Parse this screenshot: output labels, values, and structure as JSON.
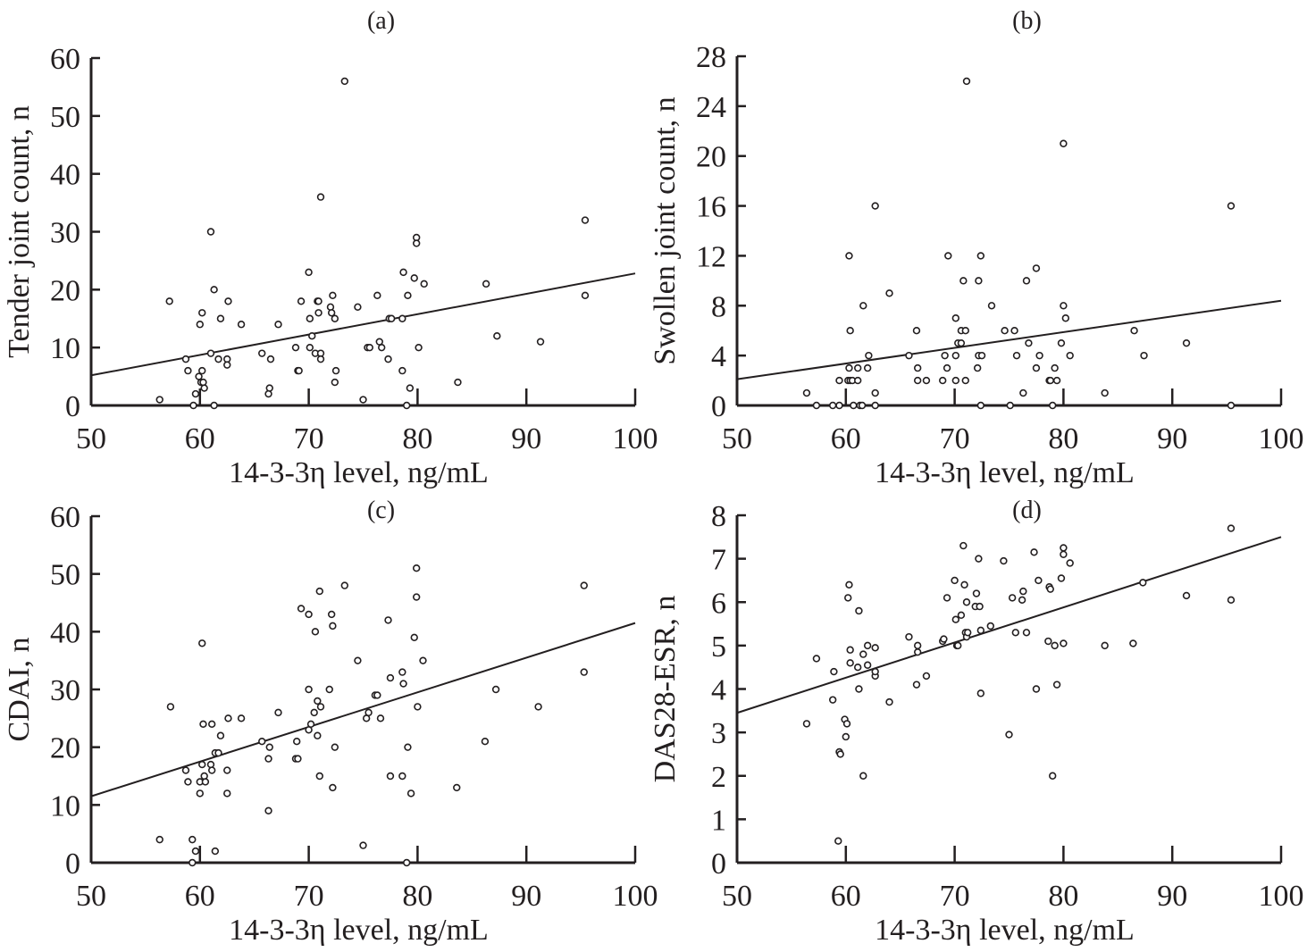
{
  "figure": {
    "colors": {
      "ink": "#231f20",
      "background": "#ffffff"
    }
  },
  "chart_data": [
    {
      "type": "scatter",
      "panel": "(a)",
      "title": "(a)",
      "xlabel": "14-3-3η level, ng/mL",
      "ylabel": "Tender joint count, n",
      "xlim": [
        50,
        100
      ],
      "ylim": [
        0,
        60
      ],
      "xticks": [
        50,
        60,
        70,
        80,
        90,
        100
      ],
      "yticks": [
        0,
        10,
        20,
        30,
        40,
        50,
        60
      ],
      "grid": false,
      "regression": {
        "x": [
          50,
          100
        ],
        "y": [
          5.2,
          22.8
        ]
      },
      "points": [
        [
          56.3,
          1
        ],
        [
          57.2,
          18
        ],
        [
          58.7,
          8
        ],
        [
          58.9,
          6
        ],
        [
          59.4,
          0
        ],
        [
          59.6,
          2
        ],
        [
          59.9,
          5
        ],
        [
          60.0,
          14
        ],
        [
          60.1,
          4
        ],
        [
          60.2,
          16
        ],
        [
          60.2,
          6
        ],
        [
          60.3,
          4
        ],
        [
          60.4,
          3
        ],
        [
          61.0,
          30
        ],
        [
          61.0,
          9
        ],
        [
          61.3,
          20
        ],
        [
          61.3,
          0
        ],
        [
          61.7,
          8
        ],
        [
          61.9,
          15
        ],
        [
          62.5,
          8
        ],
        [
          62.5,
          7
        ],
        [
          62.6,
          18
        ],
        [
          63.8,
          14
        ],
        [
          65.7,
          9
        ],
        [
          66.3,
          2
        ],
        [
          66.4,
          3
        ],
        [
          66.5,
          8
        ],
        [
          67.2,
          14
        ],
        [
          68.8,
          10
        ],
        [
          69.0,
          6
        ],
        [
          69.1,
          6
        ],
        [
          69.3,
          18
        ],
        [
          70.0,
          23
        ],
        [
          70.1,
          15
        ],
        [
          70.1,
          10
        ],
        [
          70.3,
          12
        ],
        [
          70.6,
          9
        ],
        [
          70.8,
          18
        ],
        [
          70.9,
          18
        ],
        [
          70.9,
          16
        ],
        [
          71.1,
          9
        ],
        [
          71.1,
          8
        ],
        [
          71.1,
          36
        ],
        [
          72.0,
          17
        ],
        [
          72.1,
          16
        ],
        [
          72.2,
          19
        ],
        [
          72.4,
          15
        ],
        [
          72.4,
          4
        ],
        [
          72.5,
          6
        ],
        [
          73.3,
          56
        ],
        [
          74.5,
          17
        ],
        [
          75.0,
          1
        ],
        [
          75.4,
          10
        ],
        [
          75.6,
          10
        ],
        [
          76.3,
          19
        ],
        [
          76.5,
          11
        ],
        [
          76.7,
          10
        ],
        [
          77.3,
          8
        ],
        [
          77.4,
          15
        ],
        [
          77.6,
          15
        ],
        [
          78.7,
          23
        ],
        [
          78.6,
          15
        ],
        [
          78.6,
          6
        ],
        [
          79.0,
          0
        ],
        [
          79.1,
          19
        ],
        [
          79.3,
          3
        ],
        [
          79.7,
          22
        ],
        [
          79.9,
          29
        ],
        [
          79.9,
          28
        ],
        [
          80.1,
          10
        ],
        [
          80.6,
          21
        ],
        [
          83.7,
          4
        ],
        [
          86.3,
          21
        ],
        [
          87.3,
          12
        ],
        [
          91.3,
          11
        ],
        [
          95.4,
          32
        ],
        [
          95.4,
          19
        ]
      ]
    },
    {
      "type": "scatter",
      "panel": "(b)",
      "title": "(b)",
      "xlabel": "14-3-3η level, ng/mL",
      "ylabel": "Swollen joint count, n",
      "xlim": [
        50,
        100
      ],
      "ylim": [
        0,
        28
      ],
      "xticks": [
        50,
        60,
        70,
        80,
        90,
        100
      ],
      "yticks": [
        0,
        4,
        8,
        12,
        16,
        20,
        24,
        28
      ],
      "grid": false,
      "regression": {
        "x": [
          50,
          100
        ],
        "y": [
          2.1,
          8.4
        ]
      },
      "points": [
        [
          56.4,
          1
        ],
        [
          57.3,
          0
        ],
        [
          58.8,
          0
        ],
        [
          59.4,
          2
        ],
        [
          59.4,
          0
        ],
        [
          60.2,
          2
        ],
        [
          60.3,
          3
        ],
        [
          60.3,
          12
        ],
        [
          60.4,
          6
        ],
        [
          60.4,
          2
        ],
        [
          60.6,
          2
        ],
        [
          60.7,
          0
        ],
        [
          61.1,
          2
        ],
        [
          61.1,
          3
        ],
        [
          61.3,
          0
        ],
        [
          61.5,
          0
        ],
        [
          61.6,
          8
        ],
        [
          62.0,
          3
        ],
        [
          62.1,
          4
        ],
        [
          62.7,
          16
        ],
        [
          62.7,
          1
        ],
        [
          62.7,
          0
        ],
        [
          64.0,
          9
        ],
        [
          65.8,
          4
        ],
        [
          66.5,
          6
        ],
        [
          66.6,
          3
        ],
        [
          66.6,
          2
        ],
        [
          67.4,
          2
        ],
        [
          68.9,
          2
        ],
        [
          69.1,
          4
        ],
        [
          69.3,
          3
        ],
        [
          69.4,
          12
        ],
        [
          70.1,
          7
        ],
        [
          70.1,
          4
        ],
        [
          70.1,
          2
        ],
        [
          70.3,
          5
        ],
        [
          70.6,
          5
        ],
        [
          70.6,
          6
        ],
        [
          70.8,
          10
        ],
        [
          71.0,
          6
        ],
        [
          71.1,
          26
        ],
        [
          71.0,
          2
        ],
        [
          72.1,
          3
        ],
        [
          72.2,
          10
        ],
        [
          72.2,
          4
        ],
        [
          72.4,
          12
        ],
        [
          72.5,
          4
        ],
        [
          72.4,
          0
        ],
        [
          73.4,
          8
        ],
        [
          74.6,
          6
        ],
        [
          75.1,
          0
        ],
        [
          75.5,
          6
        ],
        [
          75.7,
          4
        ],
        [
          76.3,
          1
        ],
        [
          76.6,
          10
        ],
        [
          76.8,
          5
        ],
        [
          77.5,
          11
        ],
        [
          77.5,
          3
        ],
        [
          77.8,
          4
        ],
        [
          78.7,
          2
        ],
        [
          78.8,
          2
        ],
        [
          79.0,
          0
        ],
        [
          79.2,
          3
        ],
        [
          79.4,
          2
        ],
        [
          79.8,
          5
        ],
        [
          80.0,
          8
        ],
        [
          80.0,
          21
        ],
        [
          80.2,
          7
        ],
        [
          80.6,
          4
        ],
        [
          83.8,
          1
        ],
        [
          86.5,
          6
        ],
        [
          87.4,
          4
        ],
        [
          91.3,
          5
        ],
        [
          95.4,
          16
        ],
        [
          95.4,
          0
        ]
      ]
    },
    {
      "type": "scatter",
      "panel": "(c)",
      "title": "(c)",
      "xlabel": "14-3-3η level, ng/mL",
      "ylabel": "CDAI, n",
      "xlim": [
        50,
        100
      ],
      "ylim": [
        0,
        60
      ],
      "xticks": [
        50,
        60,
        70,
        80,
        90,
        100
      ],
      "yticks": [
        0,
        10,
        20,
        30,
        40,
        50,
        60
      ],
      "grid": false,
      "regression": {
        "x": [
          50,
          100
        ],
        "y": [
          11.5,
          41.5
        ]
      },
      "points": [
        [
          56.3,
          4
        ],
        [
          57.3,
          27
        ],
        [
          58.7,
          16
        ],
        [
          58.9,
          14
        ],
        [
          59.3,
          4
        ],
        [
          59.3,
          0
        ],
        [
          59.6,
          2
        ],
        [
          60.0,
          12
        ],
        [
          60.0,
          14
        ],
        [
          60.2,
          17
        ],
        [
          60.2,
          38
        ],
        [
          60.3,
          24
        ],
        [
          60.4,
          15
        ],
        [
          60.5,
          14
        ],
        [
          61.0,
          17
        ],
        [
          61.1,
          16
        ],
        [
          61.1,
          24
        ],
        [
          61.4,
          19
        ],
        [
          61.4,
          2
        ],
        [
          61.7,
          19
        ],
        [
          61.9,
          22
        ],
        [
          62.5,
          16
        ],
        [
          62.5,
          12
        ],
        [
          62.6,
          25
        ],
        [
          63.8,
          25
        ],
        [
          65.7,
          21
        ],
        [
          66.3,
          18
        ],
        [
          66.3,
          9
        ],
        [
          66.4,
          20
        ],
        [
          67.2,
          26
        ],
        [
          68.8,
          18
        ],
        [
          69.0,
          18
        ],
        [
          68.9,
          21
        ],
        [
          69.3,
          44
        ],
        [
          70.0,
          43
        ],
        [
          70.0,
          30
        ],
        [
          70.0,
          23
        ],
        [
          70.2,
          24
        ],
        [
          70.5,
          26
        ],
        [
          70.6,
          40
        ],
        [
          70.8,
          28
        ],
        [
          70.8,
          22
        ],
        [
          71.0,
          15
        ],
        [
          71.0,
          47
        ],
        [
          71.1,
          27
        ],
        [
          71.9,
          30
        ],
        [
          72.1,
          43
        ],
        [
          72.2,
          41
        ],
        [
          72.2,
          13
        ],
        [
          72.4,
          20
        ],
        [
          73.3,
          48
        ],
        [
          74.5,
          35
        ],
        [
          75.0,
          3
        ],
        [
          75.3,
          25
        ],
        [
          75.5,
          26
        ],
        [
          76.1,
          29
        ],
        [
          76.3,
          29
        ],
        [
          76.6,
          25
        ],
        [
          77.3,
          42
        ],
        [
          77.5,
          15
        ],
        [
          77.5,
          32
        ],
        [
          78.6,
          33
        ],
        [
          78.7,
          31
        ],
        [
          78.6,
          15
        ],
        [
          79.0,
          0
        ],
        [
          79.1,
          20
        ],
        [
          79.4,
          12
        ],
        [
          79.7,
          39
        ],
        [
          79.9,
          46
        ],
        [
          79.9,
          51
        ],
        [
          80.0,
          27
        ],
        [
          80.5,
          35
        ],
        [
          83.6,
          13
        ],
        [
          86.2,
          21
        ],
        [
          87.2,
          30
        ],
        [
          91.1,
          27
        ],
        [
          95.3,
          48
        ],
        [
          95.3,
          33
        ]
      ]
    },
    {
      "type": "scatter",
      "panel": "(d)",
      "title": "(d)",
      "xlabel": "14-3-3η level, ng/mL",
      "ylabel": "DAS28-ESR, n",
      "xlim": [
        50,
        100
      ],
      "ylim": [
        0,
        8
      ],
      "xticks": [
        50,
        60,
        70,
        80,
        90,
        100
      ],
      "yticks": [
        0,
        1,
        2,
        3,
        4,
        5,
        6,
        7,
        8
      ],
      "grid": false,
      "regression": {
        "x": [
          50,
          100
        ],
        "y": [
          3.45,
          7.5
        ]
      },
      "points": [
        [
          56.4,
          3.2
        ],
        [
          57.3,
          4.7
        ],
        [
          58.8,
          3.75
        ],
        [
          58.9,
          4.4
        ],
        [
          59.4,
          2.55
        ],
        [
          59.5,
          2.5
        ],
        [
          59.3,
          0.5
        ],
        [
          59.9,
          3.3
        ],
        [
          60.0,
          2.9
        ],
        [
          60.1,
          3.2
        ],
        [
          60.2,
          6.1
        ],
        [
          60.3,
          6.4
        ],
        [
          60.4,
          4.9
        ],
        [
          60.4,
          4.6
        ],
        [
          61.1,
          4.5
        ],
        [
          61.2,
          5.8
        ],
        [
          61.2,
          4.0
        ],
        [
          61.6,
          4.8
        ],
        [
          61.6,
          2.0
        ],
        [
          62.0,
          5.0
        ],
        [
          62.0,
          4.55
        ],
        [
          62.7,
          4.3
        ],
        [
          62.7,
          4.4
        ],
        [
          62.7,
          4.95
        ],
        [
          64.0,
          3.7
        ],
        [
          65.8,
          5.2
        ],
        [
          66.5,
          4.1
        ],
        [
          66.6,
          5.0
        ],
        [
          66.6,
          4.85
        ],
        [
          67.4,
          4.3
        ],
        [
          68.9,
          5.1
        ],
        [
          69.0,
          5.15
        ],
        [
          69.3,
          6.1
        ],
        [
          70.0,
          6.5
        ],
        [
          70.1,
          5.6
        ],
        [
          70.2,
          5.0
        ],
        [
          70.3,
          5.0
        ],
        [
          70.6,
          5.7
        ],
        [
          70.8,
          7.3
        ],
        [
          70.9,
          6.4
        ],
        [
          71.0,
          5.3
        ],
        [
          71.1,
          5.2
        ],
        [
          71.1,
          6.0
        ],
        [
          71.2,
          5.3
        ],
        [
          71.9,
          5.9
        ],
        [
          72.0,
          6.2
        ],
        [
          72.2,
          7.0
        ],
        [
          72.3,
          5.9
        ],
        [
          72.4,
          5.35
        ],
        [
          72.4,
          3.9
        ],
        [
          73.3,
          5.45
        ],
        [
          74.5,
          6.95
        ],
        [
          75.0,
          2.95
        ],
        [
          75.3,
          6.1
        ],
        [
          75.6,
          5.3
        ],
        [
          76.2,
          6.05
        ],
        [
          76.3,
          6.25
        ],
        [
          76.6,
          5.3
        ],
        [
          77.3,
          7.15
        ],
        [
          77.5,
          4.0
        ],
        [
          77.7,
          6.5
        ],
        [
          78.6,
          5.1
        ],
        [
          78.7,
          6.35
        ],
        [
          78.8,
          6.3
        ],
        [
          79.0,
          2.0
        ],
        [
          79.2,
          5.0
        ],
        [
          79.4,
          4.1
        ],
        [
          79.8,
          6.55
        ],
        [
          80.0,
          7.1
        ],
        [
          80.0,
          7.25
        ],
        [
          80.0,
          5.05
        ],
        [
          80.6,
          6.9
        ],
        [
          83.8,
          5.0
        ],
        [
          86.4,
          5.05
        ],
        [
          87.3,
          6.45
        ],
        [
          91.3,
          6.15
        ],
        [
          95.4,
          7.7
        ],
        [
          95.4,
          6.05
        ]
      ]
    }
  ]
}
